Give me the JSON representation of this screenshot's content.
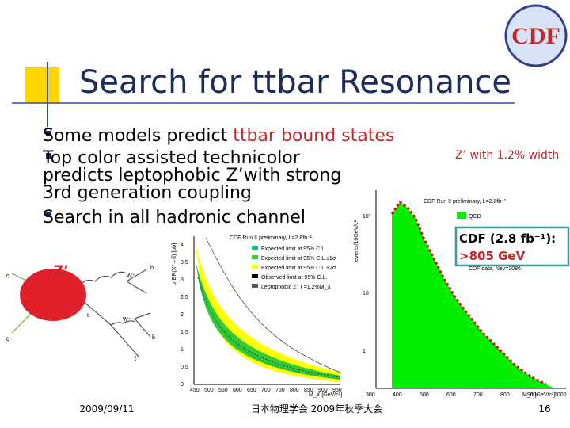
{
  "slide": {
    "title": "Search for ttbar Resonance",
    "bullets": [
      {
        "text": "Some models predict ",
        "highlight": "ttbar bound states"
      },
      {
        "text": "Top color assisted technicolor predicts leptophobic Z’with strong 3rd generation coupling"
      },
      {
        "text": "Search in all hadronic channel"
      }
    ],
    "logo": "CDF",
    "diagram": {
      "label": "Z’",
      "particles": [
        "q",
        "q̄",
        "t",
        "t̄",
        "W⁺",
        "W⁻",
        "b",
        "b̄"
      ]
    },
    "limit_plot": {
      "title": "CDF Run II preliminary, L=2.8fb⁻¹",
      "ylabel": "σ·BR(X⁰→tt̄) [pb]",
      "xlabel": "M_X [GeV/c²]",
      "xticks": [
        "450",
        "500",
        "550",
        "600",
        "650",
        "700",
        "750",
        "800",
        "850",
        "900",
        "950"
      ],
      "yticks": [
        "0",
        "0.5",
        "1",
        "1.5",
        "2",
        "2.5",
        "3",
        "3.5",
        "4"
      ],
      "legend": [
        "Expected limit at 95% C.L.",
        "Expected limit at 95% C.L.±1σ",
        "Expected limit at 95% C.L.±2σ",
        "Observed limit at 95% C.L.",
        "Leptophobic Z’, Γ=1.2%M_X"
      ]
    },
    "mass_plot": {
      "title": "CDF Run II preliminary, L=2.8fb⁻¹",
      "ylabel": "events/10GeV/c²",
      "xlabel": "M_tt̄ [GeV/c²]",
      "xticks": [
        "300",
        "400",
        "500",
        "600",
        "700",
        "800",
        "900",
        "1000"
      ],
      "yticks": [
        "1",
        "10",
        "10²"
      ],
      "legend": [
        "QCD",
        "CDF data, Nev=2086"
      ]
    },
    "width_note": "Z’ with 1.2% width",
    "result": {
      "line1": "CDF (2.8 fb⁻¹):",
      "line2": ">805 GeV"
    },
    "footer": {
      "date": "2009/09/11",
      "event": "日本物理学会 2009年秋季大会",
      "page": "16"
    }
  }
}
